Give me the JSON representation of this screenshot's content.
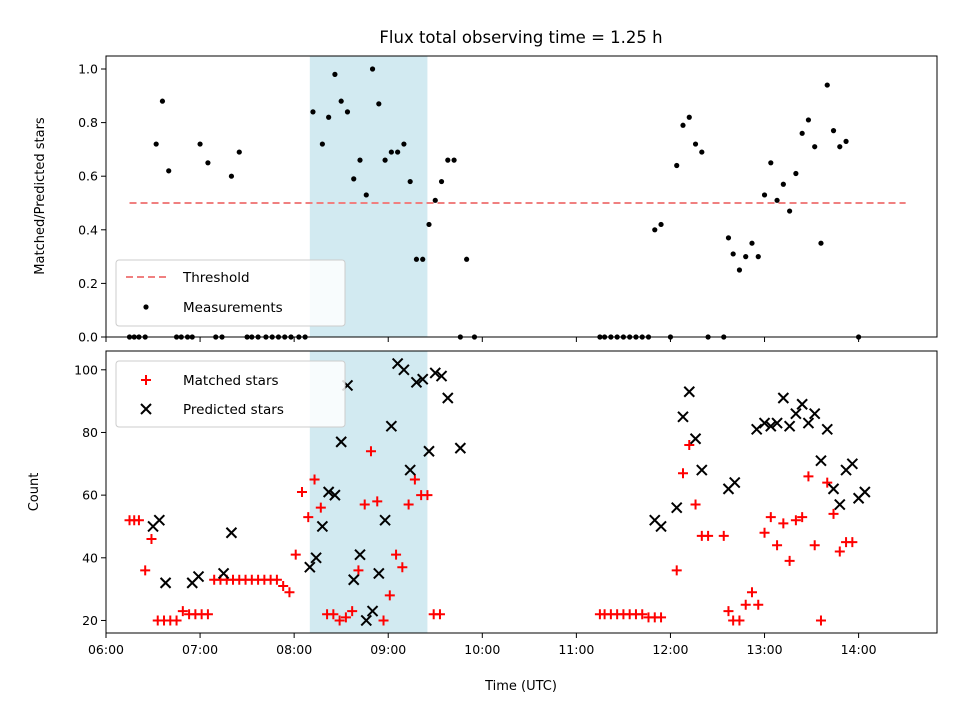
{
  "title": "Flux total observing time = 1.25 h",
  "colors": {
    "threshold": "#f08080",
    "measurements": "#000000",
    "matched": "#ff0000",
    "predicted": "#000000",
    "highlight": "#add8e6"
  },
  "chart_data": [
    {
      "type": "scatter",
      "ylabel": "Matched/Predicted stars",
      "xlabel": "",
      "xlim": [
        "06:00",
        "14:50"
      ],
      "ylim": [
        0,
        1.0
      ],
      "yticks": [
        "0.0",
        "0.2",
        "0.4",
        "0.6",
        "0.8",
        "1.0"
      ],
      "legend": {
        "placement": "lower-left",
        "entries": [
          "Threshold",
          "Measurements"
        ]
      },
      "highlight_span": [
        "08:10",
        "09:25"
      ],
      "threshold": {
        "name": "Threshold",
        "y": 0.5,
        "x_range": [
          "06:15",
          "14:30"
        ]
      },
      "series": [
        {
          "name": "Measurements",
          "points": [
            [
              "06:15",
              0
            ],
            [
              "06:18",
              0
            ],
            [
              "06:21",
              0
            ],
            [
              "06:25",
              0
            ],
            [
              "06:32",
              0.72
            ],
            [
              "06:36",
              0.88
            ],
            [
              "06:40",
              0.62
            ],
            [
              "06:45",
              0
            ],
            [
              "06:48",
              0
            ],
            [
              "06:52",
              0
            ],
            [
              "06:55",
              0
            ],
            [
              "07:00",
              0.72
            ],
            [
              "07:05",
              0.65
            ],
            [
              "07:10",
              0
            ],
            [
              "07:14",
              0
            ],
            [
              "07:20",
              0.6
            ],
            [
              "07:25",
              0.69
            ],
            [
              "07:30",
              0
            ],
            [
              "07:33",
              0
            ],
            [
              "07:37",
              0
            ],
            [
              "07:42",
              0
            ],
            [
              "07:46",
              0
            ],
            [
              "07:50",
              0
            ],
            [
              "07:54",
              0
            ],
            [
              "07:58",
              0
            ],
            [
              "08:03",
              0
            ],
            [
              "08:07",
              0
            ],
            [
              "08:12",
              0.84
            ],
            [
              "08:18",
              0.72
            ],
            [
              "08:22",
              0.82
            ],
            [
              "08:26",
              0.98
            ],
            [
              "08:30",
              0.88
            ],
            [
              "08:34",
              0.84
            ],
            [
              "08:38",
              0.59
            ],
            [
              "08:42",
              0.66
            ],
            [
              "08:46",
              0.53
            ],
            [
              "08:50",
              1.0
            ],
            [
              "08:54",
              0.87
            ],
            [
              "08:58",
              0.66
            ],
            [
              "09:02",
              0.69
            ],
            [
              "09:06",
              0.69
            ],
            [
              "09:10",
              0.72
            ],
            [
              "09:14",
              0.58
            ],
            [
              "09:18",
              0.29
            ],
            [
              "09:22",
              0.29
            ],
            [
              "09:26",
              0.42
            ],
            [
              "09:30",
              0.51
            ],
            [
              "09:34",
              0.58
            ],
            [
              "09:38",
              0.66
            ],
            [
              "09:42",
              0.66
            ],
            [
              "09:46",
              0
            ],
            [
              "09:50",
              0.29
            ],
            [
              "09:55",
              0
            ],
            [
              "11:15",
              0
            ],
            [
              "11:18",
              0
            ],
            [
              "11:22",
              0
            ],
            [
              "11:26",
              0
            ],
            [
              "11:30",
              0
            ],
            [
              "11:34",
              0
            ],
            [
              "11:38",
              0
            ],
            [
              "11:42",
              0
            ],
            [
              "11:46",
              0
            ],
            [
              "11:50",
              0.4
            ],
            [
              "11:54",
              0.42
            ],
            [
              "12:00",
              0
            ],
            [
              "12:04",
              0.64
            ],
            [
              "12:08",
              0.79
            ],
            [
              "12:12",
              0.82
            ],
            [
              "12:16",
              0.72
            ],
            [
              "12:20",
              0.69
            ],
            [
              "12:24",
              0
            ],
            [
              "12:34",
              0
            ],
            [
              "12:37",
              0.37
            ],
            [
              "12:40",
              0.31
            ],
            [
              "12:44",
              0.25
            ],
            [
              "12:48",
              0.3
            ],
            [
              "12:52",
              0.35
            ],
            [
              "12:56",
              0.3
            ],
            [
              "13:00",
              0.53
            ],
            [
              "13:04",
              0.65
            ],
            [
              "13:08",
              0.51
            ],
            [
              "13:12",
              0.57
            ],
            [
              "13:16",
              0.47
            ],
            [
              "13:20",
              0.61
            ],
            [
              "13:24",
              0.76
            ],
            [
              "13:28",
              0.81
            ],
            [
              "13:32",
              0.71
            ],
            [
              "13:36",
              0.35
            ],
            [
              "13:40",
              0.94
            ],
            [
              "13:44",
              0.77
            ],
            [
              "13:48",
              0.71
            ],
            [
              "13:52",
              0.73
            ],
            [
              "14:00",
              0
            ]
          ]
        }
      ]
    },
    {
      "type": "scatter",
      "ylabel": "Count",
      "xlabel": "Time (UTC)",
      "xlim": [
        "06:00",
        "14:50"
      ],
      "ylim": [
        16,
        106
      ],
      "yticks": [
        "20",
        "40",
        "60",
        "80",
        "100"
      ],
      "xticks": [
        "06:00",
        "07:00",
        "08:00",
        "09:00",
        "10:00",
        "11:00",
        "12:00",
        "13:00",
        "14:00"
      ],
      "legend": {
        "placement": "upper-left",
        "entries": [
          "Matched stars",
          "Predicted stars"
        ]
      },
      "highlight_span": [
        "08:10",
        "09:25"
      ],
      "series": [
        {
          "name": "Matched stars",
          "marker": "plus",
          "points": [
            [
              "06:15",
              52
            ],
            [
              "06:18",
              52
            ],
            [
              "06:21",
              52
            ],
            [
              "06:25",
              36
            ],
            [
              "06:29",
              46
            ],
            [
              "06:33",
              20
            ],
            [
              "06:37",
              20
            ],
            [
              "06:41",
              20
            ],
            [
              "06:45",
              20
            ],
            [
              "06:49",
              23
            ],
            [
              "06:53",
              22
            ],
            [
              "06:57",
              22
            ],
            [
              "07:01",
              22
            ],
            [
              "07:05",
              22
            ],
            [
              "07:09",
              33
            ],
            [
              "07:13",
              33
            ],
            [
              "07:17",
              33
            ],
            [
              "07:21",
              33
            ],
            [
              "07:25",
              33
            ],
            [
              "07:29",
              33
            ],
            [
              "07:33",
              33
            ],
            [
              "07:37",
              33
            ],
            [
              "07:41",
              33
            ],
            [
              "07:45",
              33
            ],
            [
              "07:49",
              33
            ],
            [
              "07:53",
              31
            ],
            [
              "07:57",
              29
            ],
            [
              "08:01",
              41
            ],
            [
              "08:05",
              61
            ],
            [
              "08:09",
              53
            ],
            [
              "08:13",
              65
            ],
            [
              "08:17",
              56
            ],
            [
              "08:21",
              22
            ],
            [
              "08:25",
              22
            ],
            [
              "08:29",
              20
            ],
            [
              "08:33",
              21
            ],
            [
              "08:37",
              23
            ],
            [
              "08:41",
              36
            ],
            [
              "08:45",
              57
            ],
            [
              "08:49",
              74
            ],
            [
              "08:53",
              58
            ],
            [
              "08:57",
              20
            ],
            [
              "09:01",
              28
            ],
            [
              "09:05",
              41
            ],
            [
              "09:09",
              37
            ],
            [
              "09:13",
              57
            ],
            [
              "09:17",
              65
            ],
            [
              "09:21",
              60
            ],
            [
              "09:25",
              60
            ],
            [
              "09:29",
              22
            ],
            [
              "09:33",
              22
            ],
            [
              "11:15",
              22
            ],
            [
              "11:18",
              22
            ],
            [
              "11:22",
              22
            ],
            [
              "11:26",
              22
            ],
            [
              "11:30",
              22
            ],
            [
              "11:34",
              22
            ],
            [
              "11:38",
              22
            ],
            [
              "11:42",
              22
            ],
            [
              "11:46",
              21
            ],
            [
              "11:50",
              21
            ],
            [
              "11:54",
              21
            ],
            [
              "12:04",
              36
            ],
            [
              "12:08",
              67
            ],
            [
              "12:12",
              76
            ],
            [
              "12:16",
              57
            ],
            [
              "12:20",
              47
            ],
            [
              "12:24",
              47
            ],
            [
              "12:34",
              47
            ],
            [
              "12:37",
              23
            ],
            [
              "12:40",
              20
            ],
            [
              "12:44",
              20
            ],
            [
              "12:48",
              25
            ],
            [
              "12:52",
              29
            ],
            [
              "12:56",
              25
            ],
            [
              "13:00",
              48
            ],
            [
              "13:04",
              53
            ],
            [
              "13:08",
              44
            ],
            [
              "13:12",
              51
            ],
            [
              "13:16",
              39
            ],
            [
              "13:20",
              52
            ],
            [
              "13:24",
              53
            ],
            [
              "13:28",
              66
            ],
            [
              "13:32",
              44
            ],
            [
              "13:36",
              20
            ],
            [
              "13:40",
              64
            ],
            [
              "13:44",
              54
            ],
            [
              "13:48",
              42
            ],
            [
              "13:52",
              45
            ],
            [
              "13:56",
              45
            ]
          ]
        },
        {
          "name": "Predicted stars",
          "marker": "x",
          "points": [
            [
              "06:30",
              50
            ],
            [
              "06:34",
              52
            ],
            [
              "06:38",
              32
            ],
            [
              "06:55",
              32
            ],
            [
              "06:59",
              34
            ],
            [
              "07:15",
              35
            ],
            [
              "07:20",
              48
            ],
            [
              "08:10",
              37
            ],
            [
              "08:14",
              40
            ],
            [
              "08:18",
              50
            ],
            [
              "08:22",
              61
            ],
            [
              "08:26",
              60
            ],
            [
              "08:30",
              77
            ],
            [
              "08:34",
              95
            ],
            [
              "08:38",
              33
            ],
            [
              "08:42",
              41
            ],
            [
              "08:46",
              20
            ],
            [
              "08:50",
              23
            ],
            [
              "08:54",
              35
            ],
            [
              "08:58",
              52
            ],
            [
              "09:02",
              82
            ],
            [
              "09:06",
              102
            ],
            [
              "09:10",
              100
            ],
            [
              "09:14",
              68
            ],
            [
              "09:18",
              96
            ],
            [
              "09:22",
              97
            ],
            [
              "09:26",
              74
            ],
            [
              "09:30",
              99
            ],
            [
              "09:34",
              98
            ],
            [
              "09:38",
              91
            ],
            [
              "09:46",
              75
            ],
            [
              "11:50",
              52
            ],
            [
              "11:54",
              50
            ],
            [
              "12:04",
              56
            ],
            [
              "12:08",
              85
            ],
            [
              "12:12",
              93
            ],
            [
              "12:16",
              78
            ],
            [
              "12:20",
              68
            ],
            [
              "12:37",
              62
            ],
            [
              "12:41",
              64
            ],
            [
              "12:55",
              81
            ],
            [
              "13:00",
              83
            ],
            [
              "13:04",
              82
            ],
            [
              "13:08",
              83
            ],
            [
              "13:12",
              91
            ],
            [
              "13:16",
              82
            ],
            [
              "13:20",
              86
            ],
            [
              "13:24",
              89
            ],
            [
              "13:28",
              83
            ],
            [
              "13:32",
              86
            ],
            [
              "13:36",
              71
            ],
            [
              "13:40",
              81
            ],
            [
              "13:44",
              62
            ],
            [
              "13:48",
              57
            ],
            [
              "13:52",
              68
            ],
            [
              "13:56",
              70
            ],
            [
              "14:00",
              59
            ],
            [
              "14:04",
              61
            ]
          ]
        }
      ]
    }
  ]
}
